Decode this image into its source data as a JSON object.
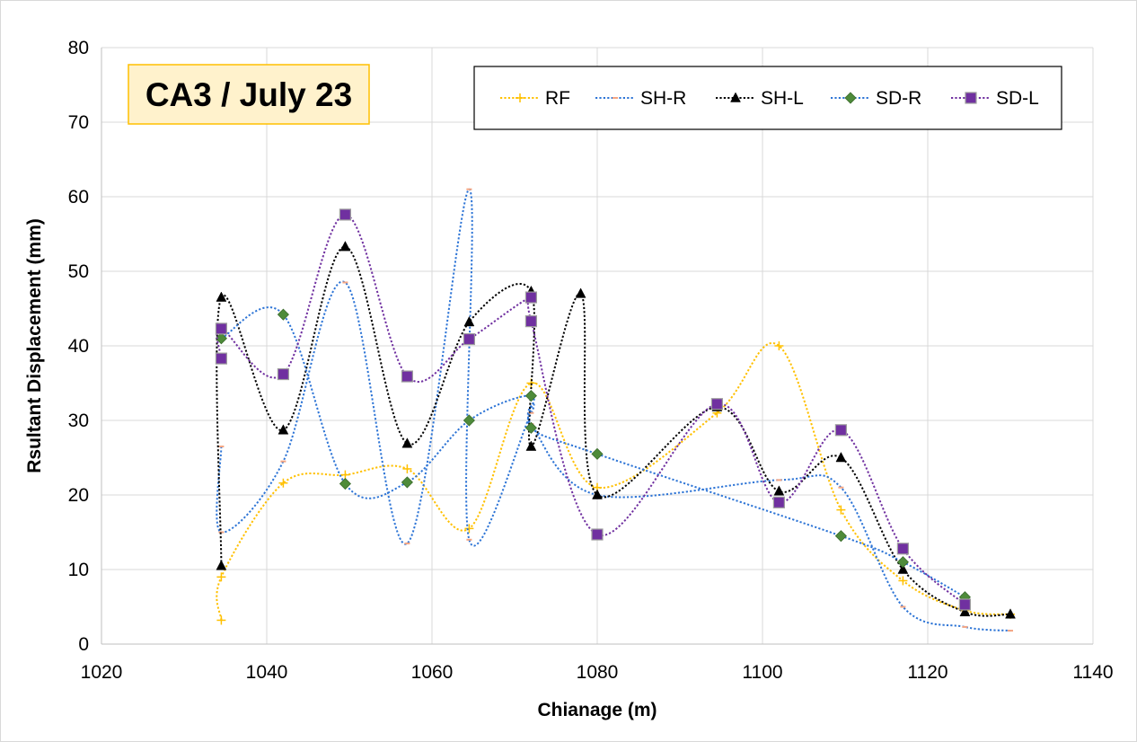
{
  "chart_data": {
    "type": "scatter",
    "title": "CA3 / July 23",
    "xlabel": "Chianage (m)",
    "ylabel": "Rsultant Displacement (mm)",
    "xlim": [
      1020,
      1140
    ],
    "ylim": [
      0,
      80
    ],
    "xticks": [
      1020,
      1040,
      1060,
      1080,
      1100,
      1120,
      1140
    ],
    "yticks": [
      0,
      10,
      20,
      30,
      40,
      50,
      60,
      70,
      80
    ],
    "grid": true,
    "legend_position": "top-right",
    "series": [
      {
        "name": "RF",
        "color": "#FFC000",
        "marker": "plus",
        "points": [
          [
            1034.5,
            3.2
          ],
          [
            1034.5,
            9
          ],
          [
            1042,
            21.6
          ],
          [
            1049.5,
            22.7
          ],
          [
            1057,
            23.5
          ],
          [
            1064.5,
            15.5
          ],
          [
            1072,
            35
          ],
          [
            1080,
            21
          ],
          [
            1094.5,
            31
          ],
          [
            1102,
            40
          ],
          [
            1109.5,
            18
          ],
          [
            1117,
            8.5
          ],
          [
            1124.5,
            4.5
          ],
          [
            1130,
            4
          ]
        ]
      },
      {
        "name": "SH-R",
        "color": "#2E75D6",
        "marker": "dash",
        "points": [
          [
            1034.5,
            26.5
          ],
          [
            1034.5,
            15
          ],
          [
            1042,
            24.5
          ],
          [
            1049.5,
            48.5
          ],
          [
            1057,
            13.5
          ],
          [
            1064.5,
            61
          ],
          [
            1064.5,
            14
          ],
          [
            1072,
            31
          ],
          [
            1072,
            29.5
          ],
          [
            1080,
            20
          ],
          [
            1102,
            22
          ],
          [
            1109.5,
            21
          ],
          [
            1117,
            5
          ],
          [
            1124.5,
            2.3
          ],
          [
            1130,
            1.8
          ]
        ]
      },
      {
        "name": "SH-L",
        "color": "#000000",
        "marker": "triangle",
        "points": [
          [
            1034.5,
            10.5
          ],
          [
            1034.5,
            46.5
          ],
          [
            1042,
            28.7
          ],
          [
            1049.5,
            53.3
          ],
          [
            1057,
            26.9
          ],
          [
            1064.5,
            43.2
          ],
          [
            1072,
            47.3
          ],
          [
            1072,
            26.5
          ],
          [
            1078,
            47
          ],
          [
            1080,
            20
          ],
          [
            1094.5,
            31.8
          ],
          [
            1102,
            20.5
          ],
          [
            1109.5,
            25
          ],
          [
            1117,
            10
          ],
          [
            1124.5,
            4.3
          ],
          [
            1130,
            4
          ]
        ]
      },
      {
        "name": "SD-R",
        "color": "#2E75D6",
        "marker": "diamond",
        "marker_fill": "#4E8B3A",
        "points": [
          [
            1034.5,
            41
          ],
          [
            1042,
            44.2
          ],
          [
            1049.5,
            21.5
          ],
          [
            1057,
            21.7
          ],
          [
            1064.5,
            30
          ],
          [
            1072,
            33.3
          ],
          [
            1072,
            29
          ],
          [
            1080,
            25.5
          ],
          [
            1109.5,
            14.5
          ],
          [
            1117,
            11
          ],
          [
            1124.5,
            6.3
          ]
        ]
      },
      {
        "name": "SD-L",
        "color": "#7030A0",
        "marker": "square",
        "marker_fill": "#7030A0",
        "points": [
          [
            1034.5,
            38.3
          ],
          [
            1034.5,
            42.3
          ],
          [
            1042,
            36.2
          ],
          [
            1049.5,
            57.6
          ],
          [
            1057,
            35.9
          ],
          [
            1064.5,
            40.9
          ],
          [
            1072,
            46.5
          ],
          [
            1072,
            43.3
          ],
          [
            1080,
            14.7
          ],
          [
            1094.5,
            32.2
          ],
          [
            1102,
            19
          ],
          [
            1109.5,
            28.7
          ],
          [
            1117,
            12.8
          ],
          [
            1124.5,
            5.3
          ]
        ]
      }
    ]
  }
}
